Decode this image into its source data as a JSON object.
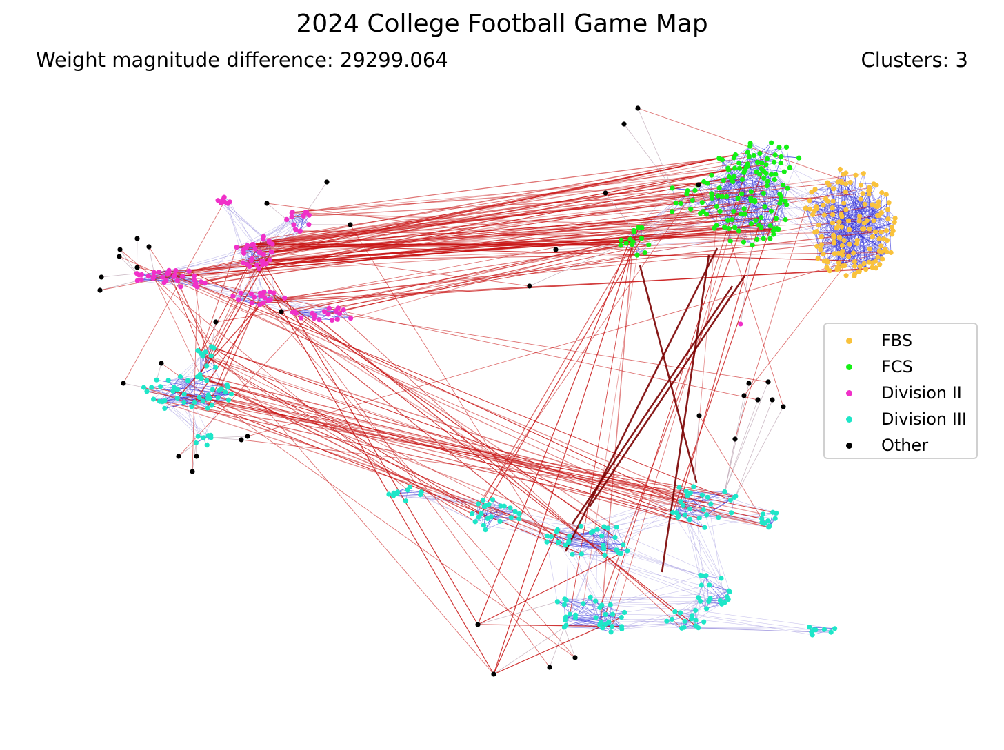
{
  "title": "2024 College Football Game Map",
  "subtitle_left": "Weight magnitude difference: 29299.064",
  "subtitle_right": "Clusters: 3",
  "legend": [
    {
      "label": "FBS",
      "color": "#f9c23c"
    },
    {
      "label": "FCS",
      "color": "#14f014"
    },
    {
      "label": "Division II",
      "color": "#f030c8"
    },
    {
      "label": "Division III",
      "color": "#1ee6c8"
    },
    {
      "label": "Other",
      "color": "#000000"
    }
  ],
  "edge_colors": {
    "intra": "#2a2ad8",
    "inter": "#c81414",
    "strong": "#7a0000",
    "weak": "#c8b4c0"
  }
}
